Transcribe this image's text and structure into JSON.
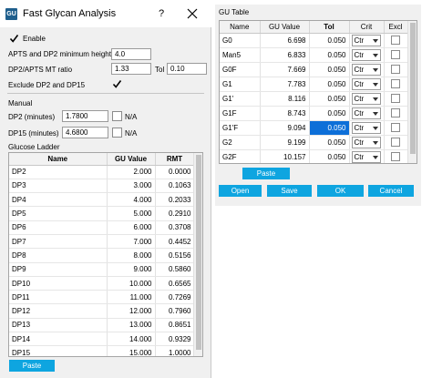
{
  "window": {
    "title": "Fast Glycan Analysis",
    "help_label": "?",
    "app_icon_text": "GU"
  },
  "form": {
    "enable_label": "Enable",
    "enable_checked": true,
    "apts_dp2_label": "APTS and DP2 minimum height",
    "apts_dp2_value": "4.0",
    "mt_ratio_label": "DP2/APTS MT ratio",
    "mt_ratio_value": "1.33",
    "tol_label": "Tol",
    "tol_value": "0.10",
    "exclude_label": "Exclude DP2 and DP15",
    "exclude_checked": true,
    "manual_label": "Manual",
    "dp2_minutes_label": "DP2 (minutes)",
    "dp2_minutes_value": "1.7800",
    "dp2_na_label": "N/A",
    "dp15_minutes_label": "DP15 (minutes)",
    "dp15_minutes_value": "4.6800",
    "dp15_na_label": "N/A"
  },
  "ladder": {
    "label": "Glucose Ladder",
    "headers": [
      "Name",
      "GU Value",
      "RMT"
    ],
    "rows": [
      [
        "DP2",
        "2.000",
        "0.0000"
      ],
      [
        "DP3",
        "3.000",
        "0.1063"
      ],
      [
        "DP4",
        "4.000",
        "0.2033"
      ],
      [
        "DP5",
        "5.000",
        "0.2910"
      ],
      [
        "DP6",
        "6.000",
        "0.3708"
      ],
      [
        "DP7",
        "7.000",
        "0.4452"
      ],
      [
        "DP8",
        "8.000",
        "0.5156"
      ],
      [
        "DP9",
        "9.000",
        "0.5860"
      ],
      [
        "DP10",
        "10.000",
        "0.6565"
      ],
      [
        "DP11",
        "11.000",
        "0.7269"
      ],
      [
        "DP12",
        "12.000",
        "0.7960"
      ],
      [
        "DP13",
        "13.000",
        "0.8651"
      ],
      [
        "DP14",
        "14.000",
        "0.9329"
      ],
      [
        "DP15",
        "15.000",
        "1.0000"
      ]
    ],
    "paste_label": "Paste"
  },
  "gu_table": {
    "label": "GU Table",
    "headers": [
      "Name",
      "GU Value",
      "Tol",
      "Crit",
      "Excl"
    ],
    "rows": [
      {
        "name": "G0",
        "gu": "6.698",
        "tol": "0.050",
        "crit": "Ctr"
      },
      {
        "name": "Man5",
        "gu": "6.833",
        "tol": "0.050",
        "crit": "Ctr"
      },
      {
        "name": "G0F",
        "gu": "7.669",
        "tol": "0.050",
        "crit": "Ctr"
      },
      {
        "name": "G1",
        "gu": "7.783",
        "tol": "0.050",
        "crit": "Ctr"
      },
      {
        "name": "G1'",
        "gu": "8.116",
        "tol": "0.050",
        "crit": "Ctr"
      },
      {
        "name": "G1F",
        "gu": "8.743",
        "tol": "0.050",
        "crit": "Ctr"
      },
      {
        "name": "G1'F",
        "gu": "9.094",
        "tol": "0.050",
        "crit": "Ctr",
        "selected": true
      },
      {
        "name": "G2",
        "gu": "9.199",
        "tol": "0.050",
        "crit": "Ctr"
      },
      {
        "name": "G2F",
        "gu": "10.157",
        "tol": "0.050",
        "crit": "Ctr"
      },
      {
        "name": "",
        "gu": "",
        "tol": "",
        "crit": "Ctr"
      }
    ],
    "paste_label": "Paste",
    "buttons": {
      "open": "Open",
      "save": "Save",
      "ok": "OK",
      "cancel": "Cancel"
    }
  },
  "colors": {
    "accent_button": "#0ea5e0",
    "selection": "#0d6fd8",
    "dialog_bg": "#f0f0f0"
  }
}
